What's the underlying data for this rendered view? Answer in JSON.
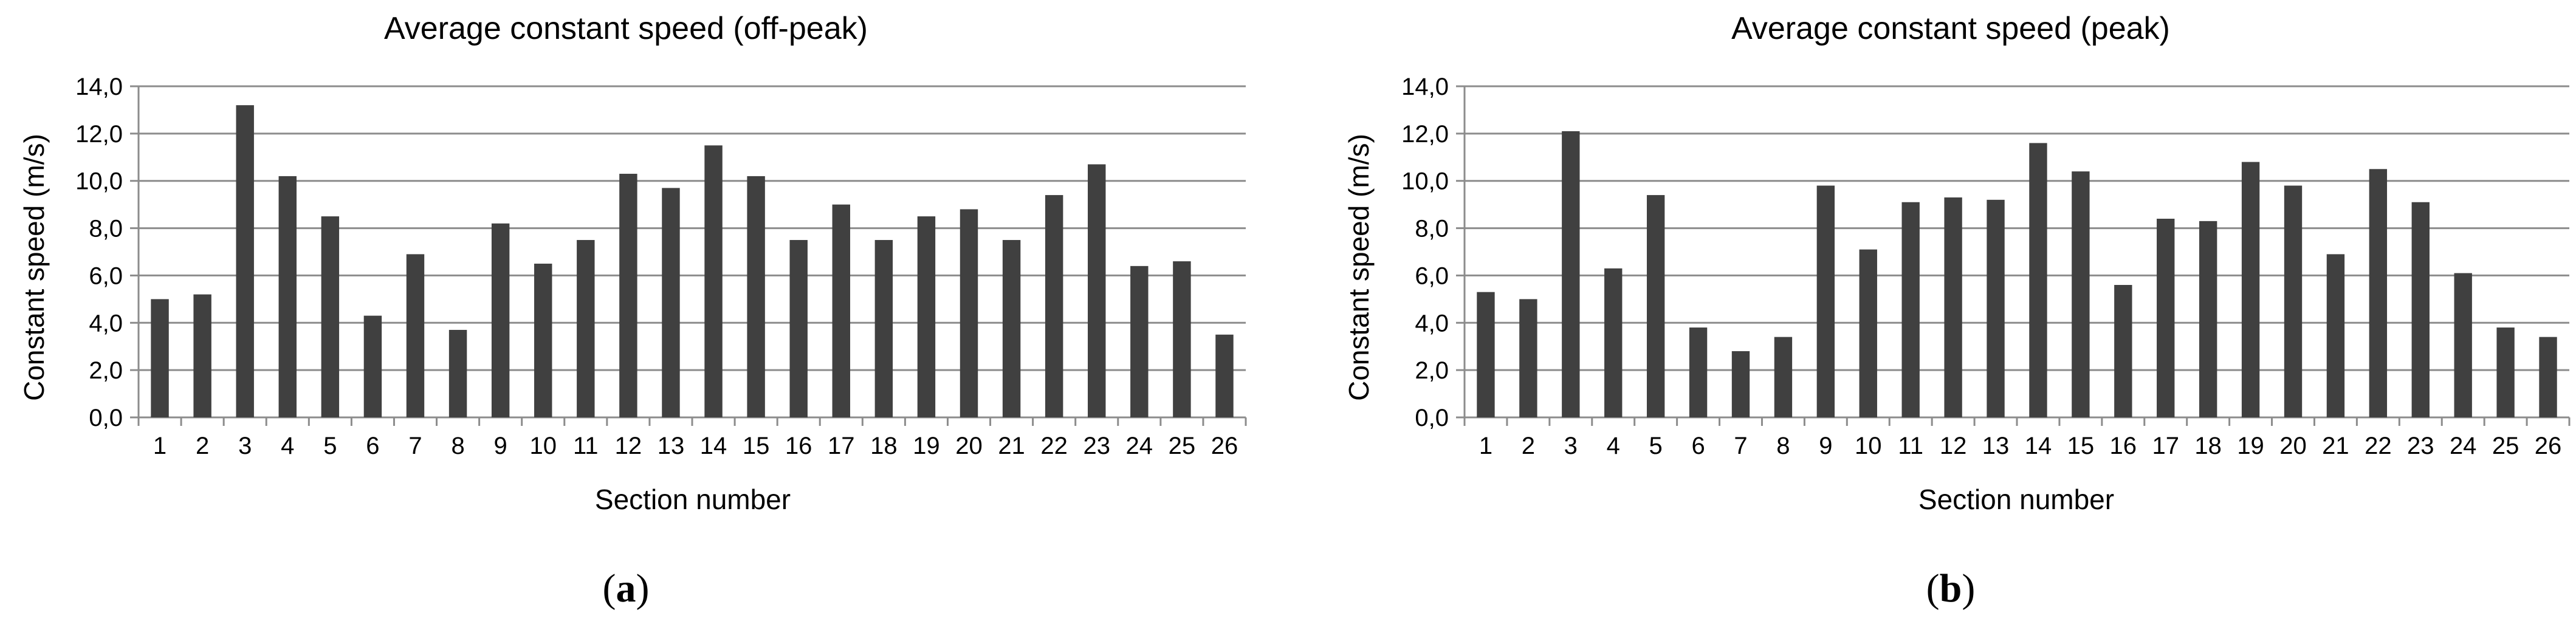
{
  "chart_data": [
    {
      "type": "bar",
      "title": "Average constant speed (off-peak)",
      "xlabel": "Section number",
      "ylabel": "Constant speed (m/s)",
      "panel_label": "a",
      "categories": [
        "1",
        "2",
        "3",
        "4",
        "5",
        "6",
        "7",
        "8",
        "9",
        "10",
        "11",
        "12",
        "13",
        "14",
        "15",
        "16",
        "17",
        "18",
        "19",
        "20",
        "21",
        "22",
        "23",
        "24",
        "25",
        "26"
      ],
      "values": [
        5.0,
        5.2,
        13.2,
        10.2,
        8.5,
        4.3,
        6.9,
        3.7,
        8.2,
        6.5,
        7.5,
        10.3,
        9.7,
        11.5,
        10.2,
        7.5,
        9.0,
        7.5,
        8.5,
        8.8,
        7.5,
        9.4,
        10.7,
        6.4,
        6.6,
        3.5
      ],
      "ylim": [
        0,
        14
      ],
      "yticks": [
        "0,0",
        "2,0",
        "4,0",
        "6,0",
        "8,0",
        "10,0",
        "12,0",
        "14,0"
      ],
      "grid": true,
      "bar_color": "#404040"
    },
    {
      "type": "bar",
      "title": "Average constant speed (peak)",
      "xlabel": "Section number",
      "ylabel": "Constant speed (m/s)",
      "panel_label": "b",
      "categories": [
        "1",
        "2",
        "3",
        "4",
        "5",
        "6",
        "7",
        "8",
        "9",
        "10",
        "11",
        "12",
        "13",
        "14",
        "15",
        "16",
        "17",
        "18",
        "19",
        "20",
        "21",
        "22",
        "23",
        "24",
        "25",
        "26"
      ],
      "values": [
        5.3,
        5.0,
        12.1,
        6.3,
        9.4,
        3.8,
        2.8,
        3.4,
        9.8,
        7.1,
        9.1,
        9.3,
        9.2,
        11.6,
        10.4,
        5.6,
        8.4,
        8.3,
        10.8,
        9.8,
        6.9,
        10.5,
        9.1,
        6.1,
        3.8,
        3.4
      ],
      "ylim": [
        0,
        14
      ],
      "yticks": [
        "0,0",
        "2,0",
        "4,0",
        "6,0",
        "8,0",
        "10,0",
        "12,0",
        "14,0"
      ],
      "grid": true,
      "bar_color": "#404040"
    }
  ]
}
